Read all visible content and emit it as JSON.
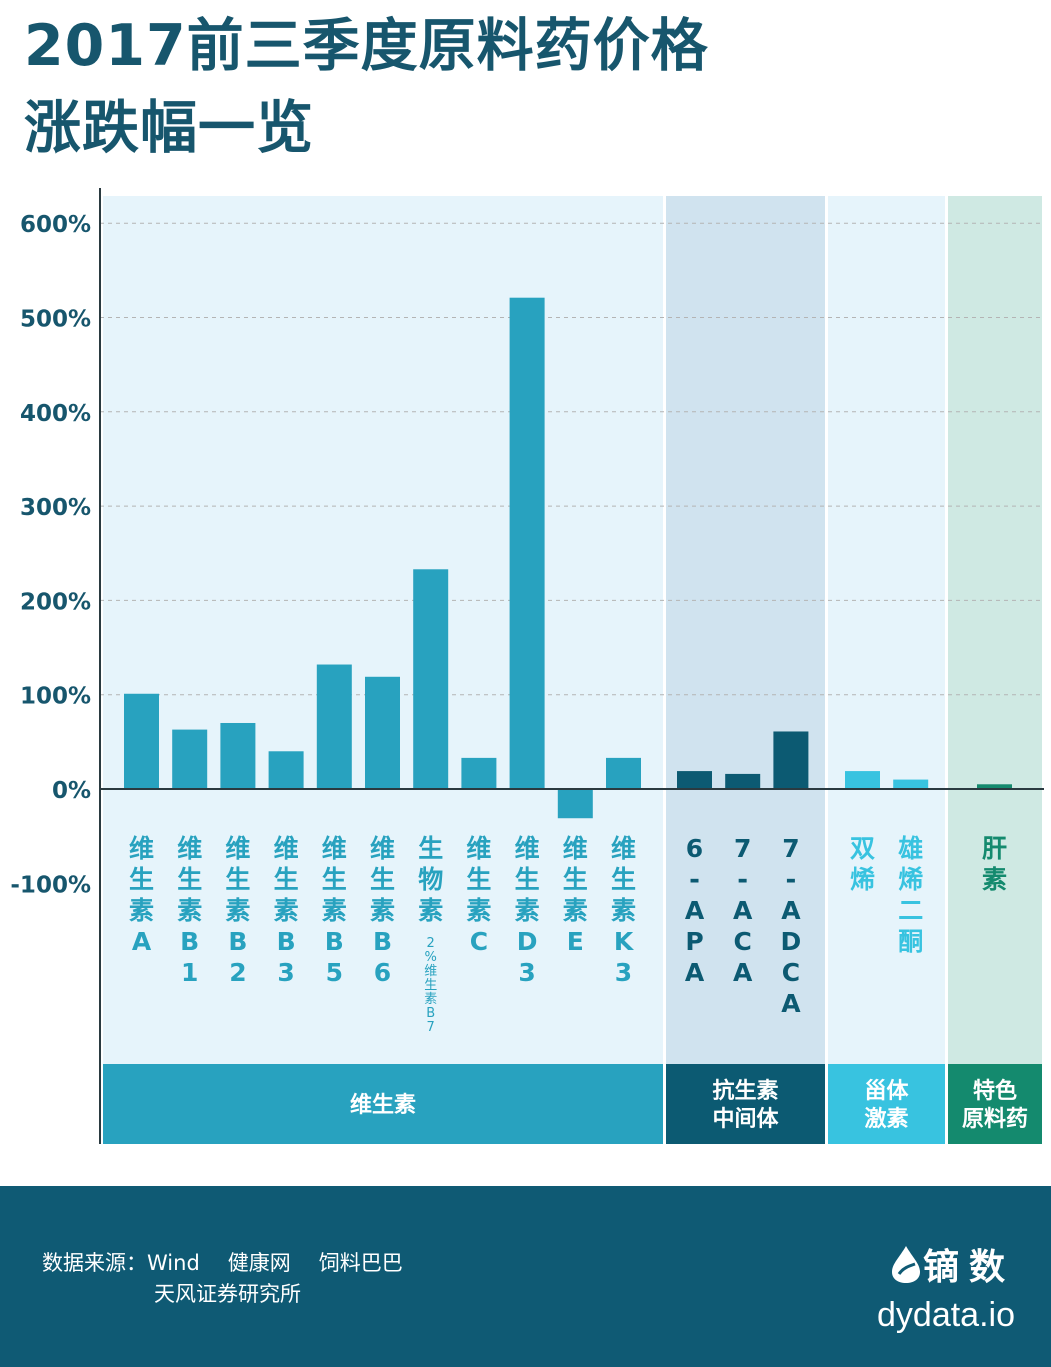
{
  "title": {
    "line1": "2017前三季度原料药价格",
    "line2": "涨跌幅一览"
  },
  "chart_data": {
    "type": "bar",
    "ylim": [
      -100,
      600
    ],
    "yticks": [
      {
        "value": 600,
        "label": "600%"
      },
      {
        "value": 500,
        "label": "500%"
      },
      {
        "value": 400,
        "label": "400%"
      },
      {
        "value": 300,
        "label": "300%"
      },
      {
        "value": 200,
        "label": "200%"
      },
      {
        "value": 100,
        "label": "100%"
      },
      {
        "value": 0,
        "label": "0%"
      },
      {
        "value": -100,
        "label": "-100%"
      }
    ],
    "grid": true,
    "groups": [
      {
        "name": "维生素",
        "bar_color": "#28a2bf",
        "bg_color": "#e6f4fb",
        "band_color": "#28a2bf",
        "label_color": "#28a2bf",
        "items": [
          {
            "name": "维生素A",
            "value": 101
          },
          {
            "name": "维生素B1",
            "value": 63
          },
          {
            "name": "维生素B2",
            "value": 70
          },
          {
            "name": "维生素B3",
            "value": 40
          },
          {
            "name": "维生素B5",
            "value": 132
          },
          {
            "name": "维生素B6",
            "value": 119
          },
          {
            "name": "生物素",
            "sub": "2%维生素B7",
            "value": 233
          },
          {
            "name": "维生素C",
            "value": 33
          },
          {
            "name": "维生素D3",
            "value": 521
          },
          {
            "name": "维生素E",
            "value": -31
          },
          {
            "name": "维生素K3",
            "value": 33
          }
        ]
      },
      {
        "name": "抗生素中间体",
        "bar_color": "#0c5a72",
        "bg_color": "#d0e3ef",
        "band_color": "#0c5a72",
        "label_color": "#0c5a72",
        "items": [
          {
            "name": "6-APA",
            "value": 19
          },
          {
            "name": "7-ACA",
            "value": 16
          },
          {
            "name": "7-ADCA",
            "value": 61
          }
        ]
      },
      {
        "name": "甾体激素",
        "bar_color": "#38c3e0",
        "bg_color": "#e6f4fb",
        "band_color": "#38c3e0",
        "label_color": "#38c3e0",
        "items": [
          {
            "name": "双烯",
            "value": 19
          },
          {
            "name": "雄烯二酮",
            "value": 10
          }
        ]
      },
      {
        "name": "特色原料药",
        "bar_color": "#148a6e",
        "bg_color": "#cfe9e3",
        "band_color": "#148a6e",
        "label_color": "#148a6e",
        "items": [
          {
            "name": "肝素",
            "value": 5
          }
        ]
      }
    ]
  },
  "footer": {
    "source_label": "数据来源：",
    "sources_line1": [
      "Wind",
      "健康网",
      "饲料巴巴"
    ],
    "sources_line2": "天风证券研究所",
    "brand_name": "镝数",
    "brand_url": "dydata.io",
    "bg_color": "#0f5a74"
  }
}
